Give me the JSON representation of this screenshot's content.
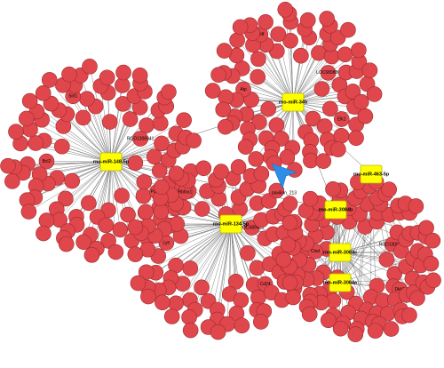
{
  "hubs": [
    {
      "label": "rno-miR-34b"
    },
    {
      "label": "rno-miR-148-5p"
    },
    {
      "label": "rno-miR-134-5p"
    },
    {
      "label": "rno-miR-463-5p"
    },
    {
      "label": "rno-miR-3084b"
    },
    {
      "label": "rno-miR-3084c"
    },
    {
      "label": "rno-miR-3084a"
    }
  ],
  "center_label": "pavilion_213",
  "genes": [
    {
      "label": "LOC689880",
      "cluster": 0
    },
    {
      "label": "Atp",
      "cluster": 0
    },
    {
      "label": "Elk1",
      "cluster": 0
    },
    {
      "label": "Mitf",
      "cluster": 0
    },
    {
      "label": "RGD1306941",
      "cluster": 1
    },
    {
      "label": "Bcl2",
      "cluster": 1
    },
    {
      "label": "Pdgfra",
      "cluster": 1
    },
    {
      "label": "Sirt1",
      "cluster": 1
    },
    {
      "label": "LOC689459",
      "cluster": 2
    },
    {
      "label": "Lyn",
      "cluster": 2
    },
    {
      "label": "Cd24",
      "cluster": 2
    },
    {
      "label": "Rbfox1",
      "cluster": 2
    },
    {
      "label": "RGD1306941",
      "cluster": 3
    },
    {
      "label": "Ctsd",
      "cluster": 3
    },
    {
      "label": "Dkk2",
      "cluster": 3
    },
    {
      "label": "LOC100360",
      "cluster": 3
    }
  ]
}
